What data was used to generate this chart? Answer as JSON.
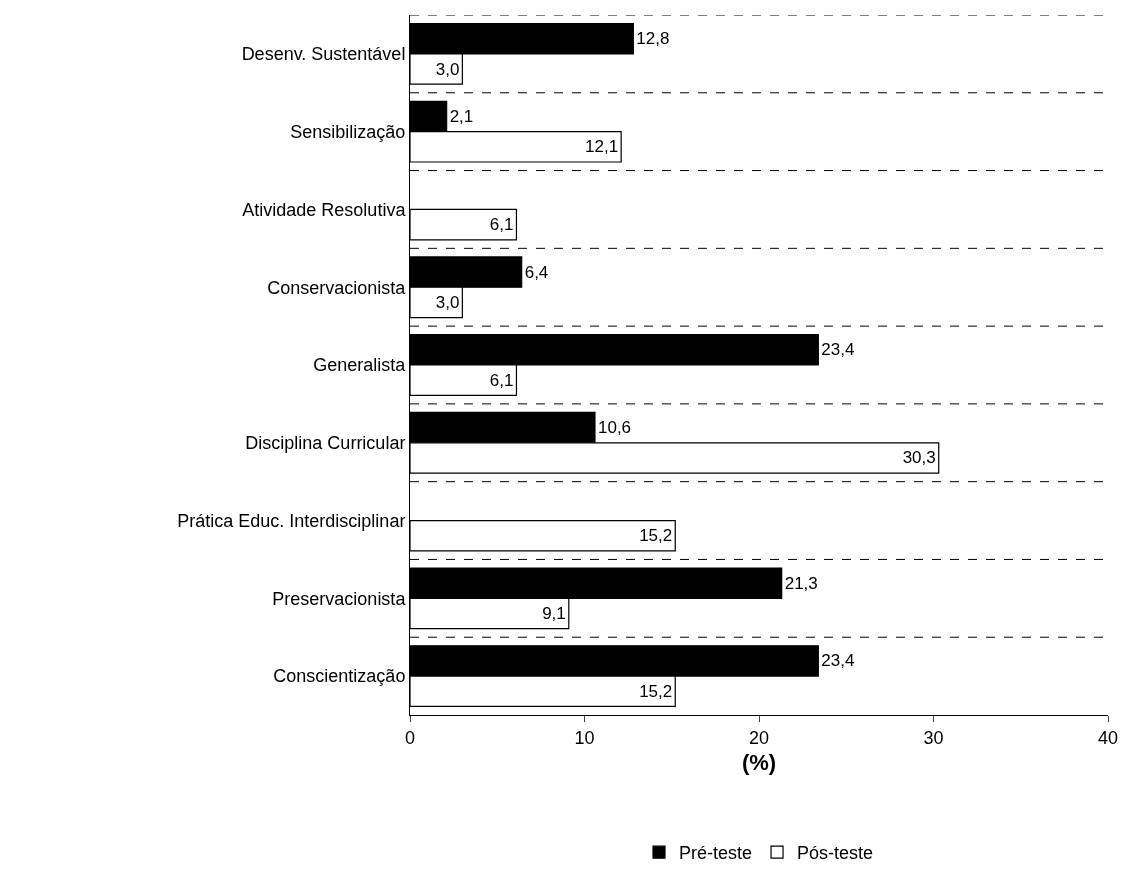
{
  "chart_data": {
    "type": "bar",
    "orientation": "horizontal",
    "categories": [
      "Desenv. Sustentável",
      "Sensibilização",
      "Atividade Resolutiva",
      "Conservacionista",
      "Generalista",
      "Disciplina Curricular",
      "Prática Educ. Interdisciplinar",
      "Preservacionista",
      "Conscientização"
    ],
    "series": [
      {
        "name": "Pré-teste",
        "color": "#000000",
        "values": [
          12.8,
          2.1,
          null,
          6.4,
          23.4,
          10.6,
          null,
          21.3,
          23.4
        ],
        "value_labels": [
          "12,8",
          "2,1",
          null,
          "6,4",
          "23,4",
          "10,6",
          null,
          "21,3",
          "23,4"
        ]
      },
      {
        "name": "Pós-teste",
        "color": "#ffffff",
        "values": [
          3.0,
          12.1,
          6.1,
          3.0,
          6.1,
          30.3,
          15.2,
          9.1,
          15.2
        ],
        "value_labels": [
          "3,0",
          "12,1",
          "6,1",
          "3,0",
          "6,1",
          "30,3",
          "15,2",
          "9,1",
          "15,2"
        ]
      }
    ],
    "xlabel": "(%)",
    "xlim": [
      0,
      40
    ],
    "xticks": [
      0,
      10,
      20,
      30,
      40
    ],
    "grid": "y",
    "legend": "bottom"
  }
}
